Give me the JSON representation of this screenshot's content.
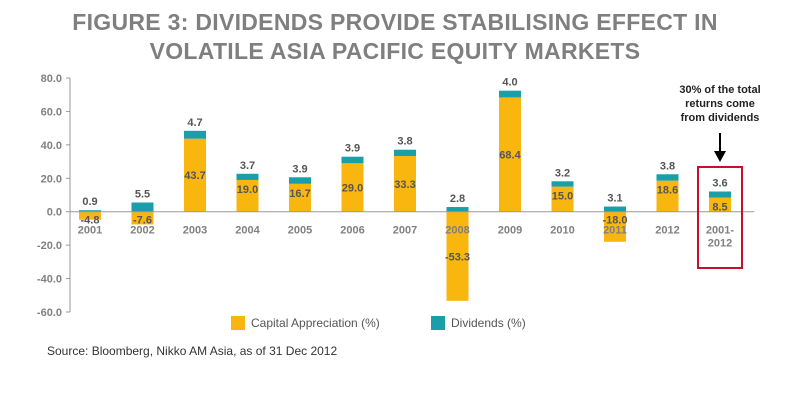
{
  "title_lines": [
    "FIGURE 3: DIVIDENDS PROVIDE STABILISING EFFECT IN",
    "VOLATILE ASIA PACIFIC EQUITY MARKETS"
  ],
  "source": "Source: Bloomberg, Nikko AM Asia, as of 31 Dec 2012",
  "callout_lines": [
    "30% of the total",
    "returns come",
    "from dividends"
  ],
  "colors": {
    "capital": "#f9b60f",
    "dividends": "#1a9eaa",
    "highlight_box": "#c8102e",
    "axis": "#999999",
    "text": "#808080"
  },
  "chart_data": {
    "type": "bar",
    "stacked": true,
    "categories": [
      "2001",
      "2002",
      "2003",
      "2004",
      "2005",
      "2006",
      "2007",
      "2008",
      "2009",
      "2010",
      "2011",
      "2012",
      "2001-2012"
    ],
    "category_lines": [
      [
        "2001"
      ],
      [
        "2002"
      ],
      [
        "2003"
      ],
      [
        "2004"
      ],
      [
        "2005"
      ],
      [
        "2006"
      ],
      [
        "2007"
      ],
      [
        "2008"
      ],
      [
        "2009"
      ],
      [
        "2010"
      ],
      [
        "2011"
      ],
      [
        "2012"
      ],
      [
        "2001-",
        "2012"
      ]
    ],
    "series": [
      {
        "name": "Capital Appreciation (%)",
        "values": [
          -4.8,
          -7.6,
          43.7,
          19.0,
          16.7,
          29.0,
          33.3,
          -53.3,
          68.4,
          15.0,
          -18.0,
          18.6,
          8.5
        ]
      },
      {
        "name": "Dividends (%)",
        "values": [
          0.9,
          5.5,
          4.7,
          3.7,
          3.9,
          3.9,
          3.8,
          2.8,
          4.0,
          3.2,
          3.1,
          3.8,
          3.6
        ]
      }
    ],
    "y_ticks": [
      "80.0",
      "60.0",
      "40.0",
      "20.0",
      "0.0",
      "-20.0",
      "-40.0",
      "-60.0"
    ],
    "ylim": [
      -60,
      80
    ],
    "highlight_category": "2001-2012",
    "legend_position": "bottom-center"
  }
}
